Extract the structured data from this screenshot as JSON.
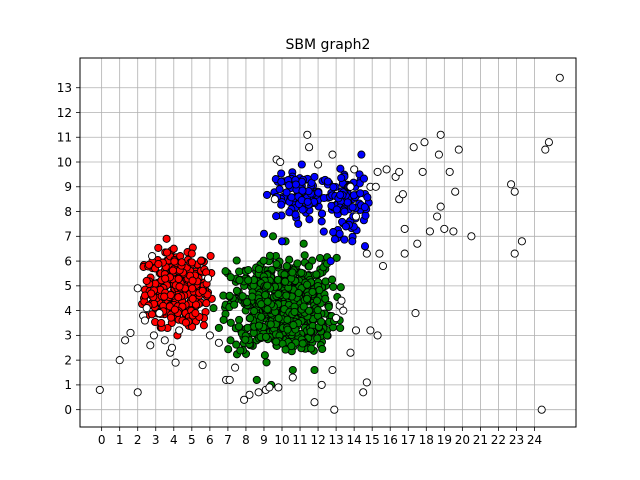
{
  "chart_data": {
    "type": "scatter",
    "title": "SBM graph2",
    "xlabel": "",
    "ylabel": "",
    "xlim": [
      -1.2,
      26.3
    ],
    "ylim": [
      -0.7,
      14.2
    ],
    "xticks": [
      "0",
      "1",
      "2",
      "3",
      "4",
      "5",
      "6",
      "7",
      "8",
      "9",
      "10",
      "11",
      "12",
      "13",
      "14",
      "15",
      "16",
      "17",
      "18",
      "19",
      "20",
      "21",
      "22",
      "23",
      "24"
    ],
    "yticks": [
      "0",
      "1",
      "2",
      "3",
      "4",
      "5",
      "6",
      "7",
      "8",
      "9",
      "10",
      "11",
      "12",
      "13"
    ],
    "grid": true,
    "legend": "none",
    "series": [
      {
        "color": "#ff0000",
        "clusters": [
          {
            "cx": 4.2,
            "cy": 4.9,
            "sx": 0.9,
            "sy": 0.75,
            "n": 320
          }
        ],
        "points": [
          [
            3.6,
            6.9
          ],
          [
            4.0,
            6.5
          ],
          [
            5.0,
            6.3
          ],
          [
            2.5,
            5.2
          ],
          [
            2.6,
            4.2
          ],
          [
            5.6,
            4.8
          ],
          [
            5.8,
            4.3
          ],
          [
            3.3,
            3.5
          ],
          [
            4.2,
            3.0
          ],
          [
            5.2,
            3.9
          ]
        ]
      },
      {
        "color": "#008000",
        "clusters": [
          {
            "cx": 10.0,
            "cy": 4.2,
            "sx": 1.5,
            "sy": 0.95,
            "n": 650
          }
        ],
        "points": [
          [
            9.5,
            7.0
          ],
          [
            10.2,
            6.8
          ],
          [
            11.2,
            6.7
          ],
          [
            7.5,
            4.8
          ],
          [
            12.5,
            5.9
          ],
          [
            12.5,
            3.0
          ],
          [
            8.6,
            1.2
          ],
          [
            9.4,
            1.0
          ],
          [
            10.6,
            1.6
          ],
          [
            11.8,
            1.6
          ],
          [
            6.2,
            4.1
          ],
          [
            6.5,
            3.3
          ]
        ]
      },
      {
        "color": "#0000ff",
        "clusters": [
          {
            "cx": 11.2,
            "cy": 8.6,
            "sx": 0.9,
            "sy": 0.45,
            "n": 110
          },
          {
            "cx": 13.6,
            "cy": 8.4,
            "sx": 0.6,
            "sy": 0.7,
            "n": 90
          }
        ],
        "points": [
          [
            11.1,
            9.9
          ],
          [
            11.8,
            9.4
          ],
          [
            14.4,
            10.3
          ],
          [
            13.2,
            7.1
          ],
          [
            13.9,
            6.8
          ],
          [
            9.0,
            7.1
          ],
          [
            10.0,
            6.8
          ],
          [
            12.7,
            6.0
          ],
          [
            14.6,
            6.6
          ],
          [
            12.2,
            7.6
          ],
          [
            10.9,
            7.5
          ]
        ]
      },
      {
        "color": "#ffffff",
        "points": [
          [
            -0.1,
            0.8
          ],
          [
            1.0,
            2.0
          ],
          [
            1.3,
            2.8
          ],
          [
            1.6,
            3.1
          ],
          [
            2.0,
            0.7
          ],
          [
            2.0,
            4.9
          ],
          [
            2.3,
            3.8
          ],
          [
            2.4,
            3.6
          ],
          [
            2.5,
            4.1
          ],
          [
            2.7,
            2.6
          ],
          [
            2.9,
            3.0
          ],
          [
            3.2,
            3.9
          ],
          [
            3.5,
            2.8
          ],
          [
            3.8,
            2.3
          ],
          [
            3.9,
            2.5
          ],
          [
            4.1,
            1.9
          ],
          [
            4.3,
            3.2
          ],
          [
            2.8,
            6.2
          ],
          [
            5.9,
            5.3
          ],
          [
            6.0,
            3.0
          ],
          [
            6.5,
            2.7
          ],
          [
            5.6,
            1.8
          ],
          [
            6.9,
            1.2
          ],
          [
            7.1,
            1.2
          ],
          [
            7.4,
            1.7
          ],
          [
            7.9,
            0.4
          ],
          [
            8.2,
            0.6
          ],
          [
            8.7,
            0.7
          ],
          [
            9.1,
            0.8
          ],
          [
            9.3,
            0.9
          ],
          [
            9.8,
            0.9
          ],
          [
            10.6,
            1.3
          ],
          [
            11.8,
            0.3
          ],
          [
            12.2,
            1.0
          ],
          [
            12.8,
            1.6
          ],
          [
            13.0,
            3.7
          ],
          [
            13.2,
            4.2
          ],
          [
            13.3,
            4.4
          ],
          [
            13.4,
            4.0
          ],
          [
            13.8,
            2.3
          ],
          [
            14.1,
            3.2
          ],
          [
            14.5,
            0.7
          ],
          [
            14.7,
            1.1
          ],
          [
            14.9,
            3.2
          ],
          [
            15.3,
            3.0
          ],
          [
            12.9,
            0.0
          ],
          [
            9.6,
            8.5
          ],
          [
            9.7,
            10.1
          ],
          [
            9.9,
            10.0
          ],
          [
            11.4,
            11.1
          ],
          [
            11.5,
            10.6
          ],
          [
            12.8,
            10.3
          ],
          [
            14.0,
            9.7
          ],
          [
            14.9,
            9.0
          ],
          [
            15.2,
            9.0
          ],
          [
            15.3,
            9.6
          ],
          [
            15.8,
            9.7
          ],
          [
            16.3,
            9.4
          ],
          [
            16.5,
            9.6
          ],
          [
            16.5,
            8.5
          ],
          [
            16.7,
            8.7
          ],
          [
            16.8,
            7.3
          ],
          [
            16.8,
            6.3
          ],
          [
            17.3,
            10.6
          ],
          [
            17.5,
            6.7
          ],
          [
            17.8,
            9.6
          ],
          [
            17.9,
            10.8
          ],
          [
            18.2,
            7.2
          ],
          [
            18.6,
            7.8
          ],
          [
            18.7,
            10.3
          ],
          [
            18.8,
            8.2
          ],
          [
            18.8,
            11.1
          ],
          [
            19.3,
            9.6
          ],
          [
            19.5,
            7.2
          ],
          [
            19.6,
            8.8
          ],
          [
            19.8,
            10.5
          ],
          [
            20.5,
            7.0
          ],
          [
            14.1,
            7.8
          ],
          [
            14.7,
            6.3
          ],
          [
            15.4,
            6.3
          ],
          [
            15.6,
            5.8
          ],
          [
            17.4,
            3.9
          ],
          [
            19.0,
            7.3
          ],
          [
            22.7,
            9.1
          ],
          [
            22.9,
            8.8
          ],
          [
            22.9,
            6.3
          ],
          [
            23.3,
            6.8
          ],
          [
            24.4,
            0.0
          ],
          [
            24.6,
            10.5
          ],
          [
            24.8,
            10.8
          ],
          [
            25.4,
            13.4
          ],
          [
            13.8,
            9.0
          ],
          [
            12.0,
            9.9
          ]
        ]
      }
    ]
  }
}
